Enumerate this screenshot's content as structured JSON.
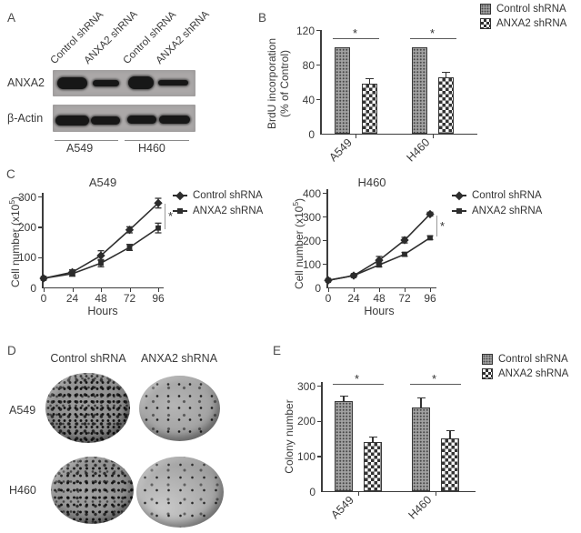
{
  "panels": {
    "a": {
      "label": "A",
      "lane_labels": [
        "Control shRNA",
        "ANXA2 shRNA",
        "Control shRNA",
        "ANXA2 shRNA"
      ],
      "blot_rows": [
        "ANXA2",
        "β-Actin"
      ],
      "cell_lines": [
        "A549",
        "H460"
      ]
    },
    "b": {
      "label": "B"
    },
    "c": {
      "label": "C"
    },
    "d": {
      "label": "D",
      "col_headers": [
        "Control shRNA",
        "ANXA2 shRNA"
      ],
      "row_labels": [
        "A549",
        "H460"
      ]
    },
    "e": {
      "label": "E"
    }
  },
  "legend": {
    "control": "Control shRNA",
    "anxa2": "ANXA2 shRNA"
  },
  "chart_data": [
    {
      "id": "brdu_incorporation",
      "type": "bar",
      "ylabel_line1": "BrdU incorporation",
      "ylabel_line2": "(% of Control)",
      "categories": [
        "A549",
        "H460"
      ],
      "series": [
        {
          "name": "Control shRNA",
          "values": [
            100,
            100
          ],
          "errors": [
            0,
            0
          ]
        },
        {
          "name": "ANXA2 shRNA",
          "values": [
            58,
            65
          ],
          "errors": [
            7,
            8
          ]
        }
      ],
      "yticks": [
        0,
        40,
        80,
        120
      ],
      "ylim": [
        0,
        120
      ],
      "legend_position": "top-right",
      "sig": [
        "*",
        "*"
      ]
    },
    {
      "id": "growth_curve_a549",
      "type": "line",
      "title": "A549",
      "xlabel": "Hours",
      "ylabel": "Cell number (x10^5)",
      "ylabel_main": "Cell number (x10",
      "ylabel_sup": "5",
      "ylabel_close": ")",
      "x": [
        0,
        24,
        48,
        72,
        96
      ],
      "series": [
        {
          "name": "Control shRNA",
          "marker": "diamond",
          "values": [
            30,
            50,
            105,
            190,
            278
          ],
          "errors": [
            5,
            8,
            16,
            10,
            16
          ]
        },
        {
          "name": "ANXA2 shRNA",
          "marker": "square",
          "values": [
            30,
            45,
            80,
            132,
            196
          ],
          "errors": [
            5,
            8,
            12,
            10,
            16
          ]
        }
      ],
      "yticks": [
        0,
        100,
        200,
        300
      ],
      "ylim": [
        0,
        300
      ],
      "legend_position": "right",
      "sig": "*"
    },
    {
      "id": "growth_curve_h460",
      "type": "line",
      "title": "H460",
      "xlabel": "Hours",
      "ylabel": "Cell number (x10^5)",
      "ylabel_main": "Cell number (x10",
      "ylabel_sup": "5",
      "ylabel_close": ")",
      "x": [
        0,
        24,
        48,
        72,
        96
      ],
      "series": [
        {
          "name": "Control shRNA",
          "marker": "diamond",
          "values": [
            30,
            50,
            115,
            200,
            310
          ],
          "errors": [
            5,
            6,
            16,
            12,
            8
          ]
        },
        {
          "name": "ANXA2 shRNA",
          "marker": "square",
          "values": [
            30,
            50,
            95,
            140,
            210
          ],
          "errors": [
            5,
            6,
            8,
            8,
            8
          ]
        }
      ],
      "yticks": [
        0,
        100,
        200,
        300,
        400
      ],
      "ylim": [
        0,
        400
      ],
      "legend_position": "right",
      "sig": "*"
    },
    {
      "id": "colony_number",
      "type": "bar",
      "ylabel": "Colony number",
      "categories": [
        "A549",
        "H460"
      ],
      "series": [
        {
          "name": "Control shRNA",
          "values": [
            257,
            238
          ],
          "errors": [
            18,
            30
          ]
        },
        {
          "name": "ANXA2 shRNA",
          "values": [
            140,
            150
          ],
          "errors": [
            17,
            25
          ]
        }
      ],
      "yticks": [
        0,
        100,
        200,
        300
      ],
      "ylim": [
        0,
        300
      ],
      "legend_position": "top-right",
      "sig": [
        "*",
        "*"
      ]
    }
  ]
}
